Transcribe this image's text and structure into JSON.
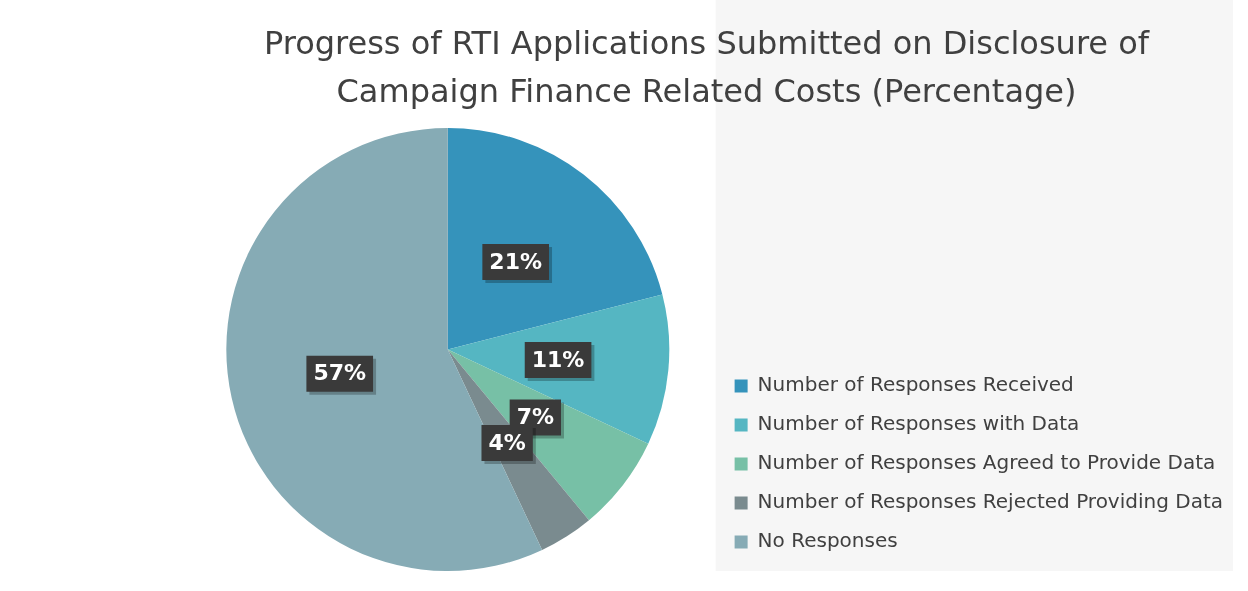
{
  "chart_data": {
    "type": "pie",
    "title": "Progress of RTI Applications Submitted on Disclosure of Campaign Finance Related Costs (Percentage)",
    "categories": [
      "Number of Responses Received",
      "Number of Responses with Data",
      "Number of Responses Agreed to Provide Data",
      "Number of Responses Rejected Providing Data",
      "No Responses"
    ],
    "values": [
      21,
      11,
      7,
      4,
      57
    ],
    "colors": [
      "#3593bb",
      "#55b6c2",
      "#77c0a6",
      "#7a8b8f",
      "#86abb5"
    ],
    "value_labels": [
      "21%",
      "11%",
      "7%",
      "4%",
      "57%"
    ],
    "legend": "right"
  }
}
